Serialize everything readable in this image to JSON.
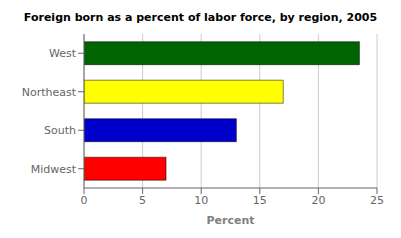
{
  "chart_data": {
    "type": "bar",
    "orientation": "horizontal",
    "title": "Foreign born as a percent of labor force, by region, 2005",
    "categories": [
      "Midwest",
      "South",
      "Northeast",
      "West"
    ],
    "values": [
      7.0,
      13.0,
      17.0,
      23.5
    ],
    "colors": [
      "#FF0000",
      "#0000CC",
      "#FFFF00",
      "#006400"
    ],
    "xlabel": "Percent",
    "xlim": [
      0,
      25
    ],
    "xticks": [
      0,
      5,
      10,
      15,
      20,
      25
    ],
    "grid": true
  }
}
